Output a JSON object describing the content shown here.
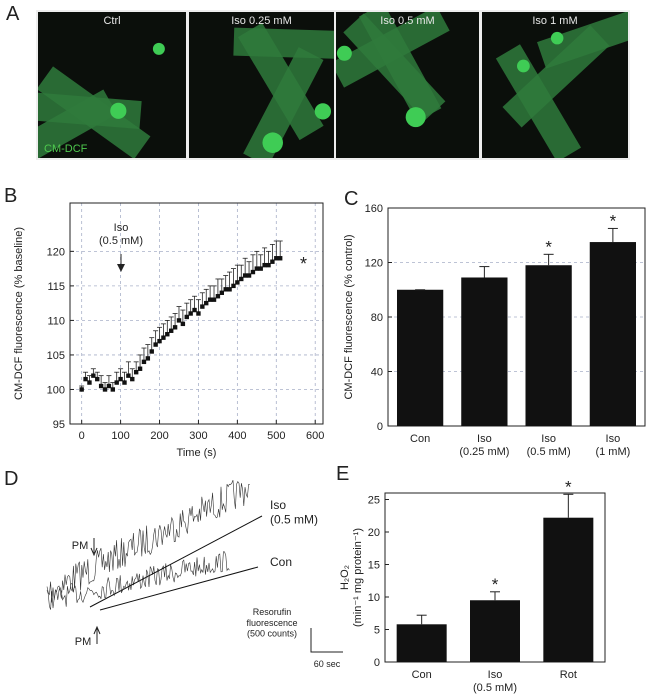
{
  "panel_labels": [
    "A",
    "B",
    "C",
    "D",
    "E"
  ],
  "images": {
    "labels": [
      "Ctrl",
      "Iso 0.25 mM",
      "Iso 0.5 mM",
      "Iso 1 mM"
    ],
    "stain": "CM-DCF"
  },
  "traces": {
    "labels": [
      "Iso\n(0.5 mM)",
      "Con"
    ],
    "markers": [
      "PM",
      "PM"
    ],
    "scale_y": "Resorufin\nfluorescence\n(500 counts)",
    "scale_x": "60 sec"
  },
  "chart_data": [
    {
      "type": "scatter",
      "x": [
        0,
        10,
        20,
        30,
        40,
        50,
        60,
        70,
        80,
        90,
        100,
        110,
        120,
        130,
        140,
        150,
        160,
        170,
        180,
        190,
        200,
        210,
        220,
        230,
        240,
        250,
        260,
        270,
        280,
        290,
        300,
        310,
        320,
        330,
        340,
        350,
        360,
        370,
        380,
        390,
        400,
        410,
        420,
        430,
        440,
        450,
        460,
        470,
        480,
        490,
        500,
        510
      ],
      "values": [
        100,
        101.5,
        101,
        102,
        101.5,
        100.5,
        100,
        100.5,
        100,
        101,
        101.5,
        101,
        102,
        101.5,
        102.5,
        103,
        104,
        104.5,
        105.5,
        106.5,
        107,
        107.5,
        108,
        108.5,
        109,
        110,
        109.5,
        110.5,
        111,
        111.5,
        111,
        112,
        112.5,
        113,
        113,
        113.5,
        114,
        114.5,
        114.5,
        115,
        115.5,
        116,
        116.5,
        116.5,
        117,
        117.5,
        117.5,
        118,
        118,
        118.5,
        119,
        119
      ],
      "errors": [
        0.5,
        1,
        1,
        1,
        1,
        1.5,
        1,
        1.5,
        1,
        1.5,
        1.5,
        1.5,
        2,
        1.5,
        1.5,
        2,
        2,
        2,
        2,
        2,
        2,
        2,
        2,
        2,
        2,
        2,
        2,
        2,
        2,
        2,
        2,
        2,
        2,
        2,
        2,
        2.5,
        2,
        2,
        2.5,
        2.5,
        2.5,
        2,
        2.5,
        2,
        2.5,
        2.5,
        2,
        2.5,
        2,
        2.5,
        2.5,
        2.5
      ],
      "annotation": "Iso\n(0.5 mM)",
      "significance": "*",
      "xlabel": "Time (s)",
      "ylabel": "CM-DCF fluorescence (% baseline)",
      "xlim": [
        -30,
        620
      ],
      "ylim": [
        95,
        127
      ],
      "xticks": [
        0,
        100,
        200,
        300,
        400,
        500,
        600
      ],
      "yticks": [
        95,
        100,
        105,
        110,
        115,
        120
      ],
      "grid": true,
      "color": "#111111"
    },
    {
      "type": "bar",
      "categories": [
        "Con",
        "Iso\n(0.25 mM)",
        "Iso\n(0.5 mM)",
        "Iso\n(1 mM)"
      ],
      "values": [
        100,
        109,
        118,
        135
      ],
      "errors": [
        0,
        8,
        8,
        10
      ],
      "significance": [
        null,
        null,
        "*",
        "*"
      ],
      "ylabel": "CM-DCF fluorescence (% control)",
      "ylim": [
        0,
        160
      ],
      "yticks": [
        0,
        40,
        80,
        120,
        160
      ],
      "grid": true,
      "color": "#111111"
    },
    {
      "type": "bar",
      "categories": [
        "Con",
        "Iso\n(0.5 mM)",
        "Rot"
      ],
      "values": [
        5.8,
        9.5,
        22.2
      ],
      "errors": [
        1.4,
        1.3,
        3.6
      ],
      "significance": [
        null,
        "*",
        "*"
      ],
      "ylabel": "H₂O₂\n(min⁻¹ mg protein⁻¹)",
      "ylim": [
        0,
        26
      ],
      "yticks": [
        0,
        5,
        10,
        15,
        20,
        25
      ],
      "grid": false,
      "color": "#111111"
    }
  ]
}
